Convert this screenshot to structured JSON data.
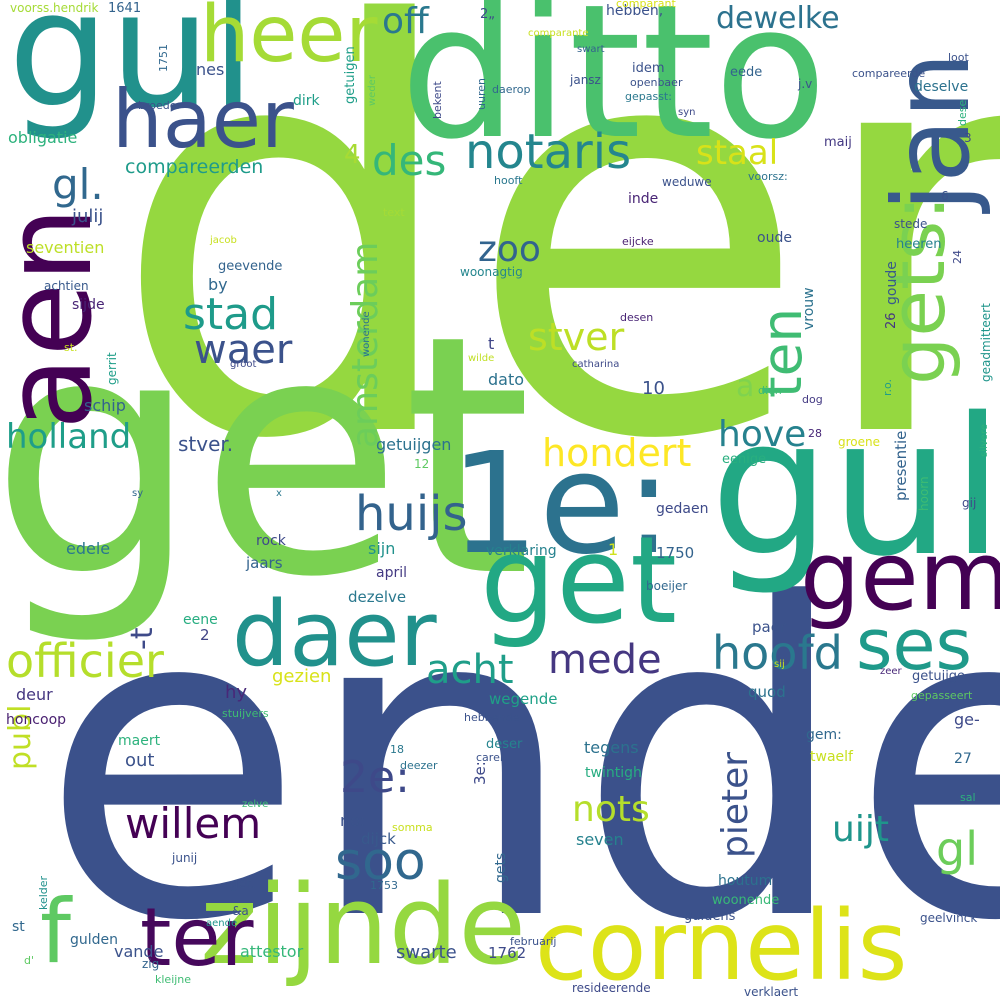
{
  "words": [
    {
      "text": "den",
      "color": "#95d840"
    },
    {
      "text": "ende",
      "color": "#3b518b"
    },
    {
      "text": "get",
      "color": "#7ad151"
    },
    {
      "text": "ditto",
      "color": "#4ac16d"
    },
    {
      "text": "gul",
      "color": "#21918c"
    },
    {
      "text": "1e:",
      "color": "#2c728e"
    },
    {
      "text": "gul",
      "color": "#22a884"
    },
    {
      "text": "aen",
      "color": "#440154"
    },
    {
      "text": "get",
      "color": "#22a884"
    },
    {
      "text": "zijnde",
      "color": "#95d840"
    },
    {
      "text": "cornelis",
      "color": "#dde318"
    },
    {
      "text": "daer",
      "color": "#21918c"
    },
    {
      "text": "gem",
      "color": "#440154"
    },
    {
      "text": "haer",
      "color": "#3b528b"
    },
    {
      "text": "heer",
      "color": "#a5db36"
    },
    {
      "text": "jan",
      "color": "#38598c"
    },
    {
      "text": "gets:",
      "color": "#7ad151"
    },
    {
      "text": "ter",
      "color": "#46085c"
    },
    {
      "text": "f",
      "color": "#5ec962"
    },
    {
      "text": "ses",
      "color": "#1f9a8a"
    },
    {
      "text": "officier",
      "color": "#b5de2b"
    },
    {
      "text": "ten",
      "color": "#3fbc73"
    },
    {
      "text": "hoofd",
      "color": "#2a788e"
    },
    {
      "text": "notaris",
      "color": "#24868e"
    },
    {
      "text": "huijs",
      "color": "#33638d"
    },
    {
      "text": "willem",
      "color": "#440154"
    },
    {
      "text": "soo",
      "color": "#31688e"
    },
    {
      "text": "2e:",
      "color": "#3e4989"
    },
    {
      "text": "stad",
      "color": "#1e9b8a"
    },
    {
      "text": "waer",
      "color": "#3b528b"
    },
    {
      "text": "holland",
      "color": "#1f9e89"
    },
    {
      "text": "des",
      "color": "#35b779"
    },
    {
      "text": "gl.",
      "color": "#31688e"
    },
    {
      "text": "off",
      "color": "#2a788e"
    },
    {
      "text": "acht",
      "color": "#1f9e89"
    },
    {
      "text": "mede",
      "color": "#453781"
    },
    {
      "text": "hondert",
      "color": "#fde725"
    },
    {
      "text": "stver",
      "color": "#bddf26"
    },
    {
      "text": "staal",
      "color": "#d8e219"
    },
    {
      "text": "hove",
      "color": "#26828e"
    },
    {
      "text": "zoo",
      "color": "#32648e"
    },
    {
      "text": "amsterdam",
      "color": "#6ccd5a"
    },
    {
      "text": "pieter",
      "color": "#3b528b"
    },
    {
      "text": "nots",
      "color": "#b5de2b"
    },
    {
      "text": "uijt",
      "color": "#1f958b"
    },
    {
      "text": "gl",
      "color": "#6ccd5a"
    },
    {
      "text": "dewelke",
      "color": "#2c728e"
    },
    {
      "text": "publ",
      "color": "#c0df25"
    },
    {
      "text": "-t",
      "color": "#3e4a89"
    },
    {
      "text": "a",
      "color": "#7fd34e"
    },
    {
      "text": "4",
      "color": "#a8db34"
    },
    {
      "text": "stver.",
      "color": "#3b528b"
    },
    {
      "text": "compareerden",
      "color": "#1e9b8a"
    },
    {
      "text": "julij",
      "color": "#3b528b"
    },
    {
      "text": "seventien",
      "color": "#bddf26"
    },
    {
      "text": "obligatie",
      "color": "#2db27d"
    },
    {
      "text": "nes",
      "color": "#3b528b"
    },
    {
      "text": "dirk",
      "color": "#1f9e89"
    },
    {
      "text": "schip",
      "color": "#33638d"
    },
    {
      "text": "by",
      "color": "#31688e"
    },
    {
      "text": "sijde",
      "color": "#482475"
    },
    {
      "text": "achtien",
      "color": "#38598c"
    },
    {
      "text": "edele",
      "color": "#2a788e"
    },
    {
      "text": "deur",
      "color": "#453781"
    },
    {
      "text": "hy",
      "color": "#482878"
    },
    {
      "text": "honcoop",
      "color": "#481f70"
    },
    {
      "text": "out",
      "color": "#3b528b"
    },
    {
      "text": "maert",
      "color": "#2db27d"
    },
    {
      "text": "gezien",
      "color": "#d8e219"
    },
    {
      "text": "getuijgen",
      "color": "#2c728e"
    },
    {
      "text": "dato",
      "color": "#2c728e"
    },
    {
      "text": "t",
      "color": "#404688"
    },
    {
      "text": "10",
      "color": "#3b528b"
    },
    {
      "text": "sijn",
      "color": "#21918c"
    },
    {
      "text": "april",
      "color": "#443a83"
    },
    {
      "text": "dezelve",
      "color": "#2a788e"
    },
    {
      "text": "jaars",
      "color": "#33638d"
    },
    {
      "text": "rock",
      "color": "#3e4989"
    },
    {
      "text": "eene",
      "color": "#27ad81"
    },
    {
      "text": "2",
      "color": "#414487"
    },
    {
      "text": "wegende",
      "color": "#1fa187"
    },
    {
      "text": "tegens",
      "color": "#2c728e"
    },
    {
      "text": "no:",
      "color": "#3b528b"
    },
    {
      "text": "dijck",
      "color": "#38598c"
    },
    {
      "text": "swarte",
      "color": "#3b528b"
    },
    {
      "text": "1762",
      "color": "#3e4a89"
    },
    {
      "text": "vande",
      "color": "#3b528b"
    },
    {
      "text": "attestor",
      "color": "#35b779"
    },
    {
      "text": "gulden",
      "color": "#31688e"
    },
    {
      "text": "st",
      "color": "#31688e"
    },
    {
      "text": "zig",
      "color": "#33638d"
    },
    {
      "text": "kleijne",
      "color": "#3fbc73"
    },
    {
      "text": "aende",
      "color": "#1f958b"
    },
    {
      "text": "verklaring",
      "color": "#26828e"
    },
    {
      "text": "1",
      "color": "#d0e11c"
    },
    {
      "text": "1750",
      "color": "#33638d"
    },
    {
      "text": "gedaen",
      "color": "#3e4a89"
    },
    {
      "text": "paer",
      "color": "#3b528b"
    },
    {
      "text": "quod",
      "color": "#2c728e"
    },
    {
      "text": "eenige",
      "color": "#29af7f"
    },
    {
      "text": "presentie",
      "color": "#33638d"
    },
    {
      "text": "hoorn",
      "color": "#3fbc73"
    },
    {
      "text": "gij",
      "color": "#3e4989"
    },
    {
      "text": "gem:",
      "color": "#31688e"
    },
    {
      "text": "twaelf",
      "color": "#c8e020"
    },
    {
      "text": "27",
      "color": "#31688e"
    },
    {
      "text": "getuijge",
      "color": "#3b528b"
    },
    {
      "text": "ge-",
      "color": "#3e4a89"
    },
    {
      "text": "gepasseert",
      "color": "#5ec962"
    },
    {
      "text": "zeer",
      "color": "#482878"
    },
    {
      "text": "woonende",
      "color": "#38b977"
    },
    {
      "text": "houtum",
      "color": "#2c728e"
    },
    {
      "text": "seven",
      "color": "#26828e"
    },
    {
      "text": "twintigh",
      "color": "#27ad81"
    },
    {
      "text": "gets",
      "color": "#31688e"
    },
    {
      "text": "3e:",
      "color": "#3e4989"
    },
    {
      "text": "deser",
      "color": "#25848e"
    },
    {
      "text": "carel",
      "color": "#3b528b"
    },
    {
      "text": "18",
      "color": "#2a788e"
    },
    {
      "text": "hebbende",
      "color": "#3b528b"
    },
    {
      "text": "boeijer",
      "color": "#31688e"
    },
    {
      "text": "vrouw",
      "color": "#2c728e"
    },
    {
      "text": "oude",
      "color": "#3b528b"
    },
    {
      "text": "woonagtig",
      "color": "#24868e"
    },
    {
      "text": "geevende",
      "color": "#33638d"
    },
    {
      "text": "inde",
      "color": "#482475"
    },
    {
      "text": "weduwe",
      "color": "#3b528b"
    },
    {
      "text": "eijcke",
      "color": "#481f70"
    },
    {
      "text": "desen",
      "color": "#482475"
    },
    {
      "text": "catharina",
      "color": "#3e4a89"
    },
    {
      "text": "wilde",
      "color": "#c0df25"
    },
    {
      "text": "dien",
      "color": "#3fbc73"
    },
    {
      "text": "dog",
      "color": "#443a83"
    },
    {
      "text": "26",
      "color": "#453781"
    },
    {
      "text": "goude",
      "color": "#38598c"
    },
    {
      "text": "groene",
      "color": "#d8e219"
    },
    {
      "text": "r.o.",
      "color": "#1f9e89"
    },
    {
      "text": "silvere",
      "color": "#2db27d"
    },
    {
      "text": "28",
      "color": "#482878"
    },
    {
      "text": "geadmitteert",
      "color": "#1f958b"
    },
    {
      "text": "24",
      "color": "#3e4989"
    },
    {
      "text": "heeren",
      "color": "#26828e"
    },
    {
      "text": "6",
      "color": "#3b528b"
    },
    {
      "text": "stede",
      "color": "#3b528b"
    },
    {
      "text": "hooft",
      "color": "#2a788e"
    },
    {
      "text": "voorsz:",
      "color": "#2c728e"
    },
    {
      "text": "maij",
      "color": "#443983"
    },
    {
      "text": "3",
      "color": "#3e4989"
    },
    {
      "text": "dese",
      "color": "#2db27d"
    },
    {
      "text": "deselve",
      "color": "#2c728e"
    },
    {
      "text": "loot",
      "color": "#3b528b"
    },
    {
      "text": "compareerde",
      "color": "#3b528b"
    },
    {
      "text": "syn",
      "color": "#3e4a89"
    },
    {
      "text": "j.v",
      "color": "#3b528b"
    },
    {
      "text": "eede",
      "color": "#33638d"
    },
    {
      "text": "idem",
      "color": "#3b528b"
    },
    {
      "text": "openbaer",
      "color": "#3b528b"
    },
    {
      "text": "gepasst:",
      "color": "#2a788e"
    },
    {
      "text": "jansz",
      "color": "#3b528b"
    },
    {
      "text": "bekent",
      "color": "#3e4a89"
    },
    {
      "text": "daerop",
      "color": "#31688e"
    },
    {
      "text": "uuren",
      "color": "#31688e"
    },
    {
      "text": "hebben,",
      "color": "#3b528b"
    },
    {
      "text": "2„",
      "color": "#3e4a89"
    },
    {
      "text": "comparant",
      "color": "#d8e219"
    },
    {
      "text": "comparante",
      "color": "#c8e020"
    },
    {
      "text": "swart",
      "color": "#33638d"
    },
    {
      "text": "getuigen",
      "color": "#1f9e89"
    },
    {
      "text": "weder",
      "color": "#5ec962"
    },
    {
      "text": "voorss.hendrik",
      "color": "#a5db36"
    },
    {
      "text": "1641",
      "color": "#33638d"
    },
    {
      "text": "1751",
      "color": "#31688e"
    },
    {
      "text": "broeder",
      "color": "#3b528b"
    },
    {
      "text": "text",
      "color": "#a5db36"
    },
    {
      "text": "jacob",
      "color": "#c8e020"
    },
    {
      "text": "wonende",
      "color": "#2c728e"
    },
    {
      "text": "groot",
      "color": "#3e4989"
    },
    {
      "text": "gerrit",
      "color": "#1f9e89"
    },
    {
      "text": "st.",
      "color": "#c8e020"
    },
    {
      "text": "sy",
      "color": "#31688e"
    },
    {
      "text": "x",
      "color": "#2a788e"
    },
    {
      "text": "12",
      "color": "#5ec962"
    },
    {
      "text": "deezer",
      "color": "#2c728e"
    },
    {
      "text": "stuijvers",
      "color": "#3fbc73"
    },
    {
      "text": "zelve",
      "color": "#3fbc73"
    },
    {
      "text": "somma",
      "color": "#c8e020"
    },
    {
      "text": "kelder",
      "color": "#21918c"
    },
    {
      "text": "junij",
      "color": "#3b528b"
    },
    {
      "text": "get.",
      "color": "#3b528b"
    },
    {
      "text": "1753",
      "color": "#31688e"
    },
    {
      "text": "&a",
      "color": "#3b528b"
    },
    {
      "text": "d'",
      "color": "#5ec962"
    },
    {
      "text": "guldens",
      "color": "#3b528b"
    },
    {
      "text": "februarij",
      "color": "#3b528b"
    },
    {
      "text": "resideerende",
      "color": "#3e4a89"
    },
    {
      "text": "verklaert",
      "color": "#3b528b"
    },
    {
      "text": "geelvinck",
      "color": "#3b528b"
    },
    {
      "text": "sal",
      "color": "#2db27d"
    },
    {
      "text": "sij",
      "color": "#c8e020"
    }
  ]
}
